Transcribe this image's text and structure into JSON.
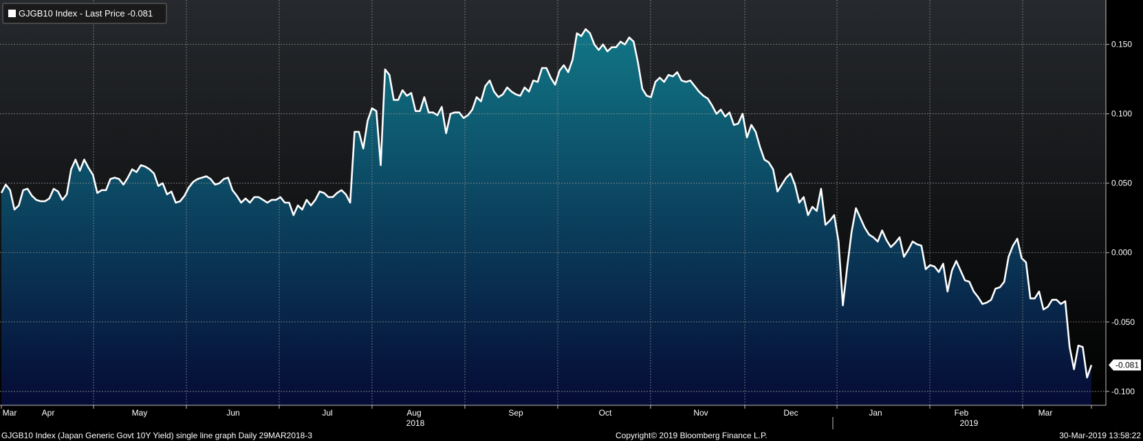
{
  "legend": {
    "text": "GJGB10 Index - Last Price -0.081"
  },
  "last_value_label": "-0.081",
  "footer": {
    "left": "GJGB10 Index (Japan Generic Govt 10Y Yield) single line graph  Daily 29MAR2018-3",
    "center": "Copyright© 2019 Bloomberg Finance L.P.",
    "right": "30-Mar-2019 13:58:22"
  },
  "colors": {
    "background": "#000000",
    "line": "#ffffff",
    "area_top": "#127f8c",
    "area_bottom": "#050b35",
    "plot_bg_top": "#26292d",
    "plot_bg_bottom": "#000000",
    "grid": "#8a8a8a"
  },
  "chart_data": {
    "type": "area",
    "title": "",
    "xlabel": "",
    "ylabel": "",
    "ylim": [
      -0.11,
      0.182
    ],
    "y_ticks": [
      0.15,
      0.1,
      0.05,
      0.0,
      -0.05,
      -0.1
    ],
    "y_tick_labels": [
      "0.150",
      "0.100",
      "0.050",
      "0.000",
      "-0.050",
      "-0.100"
    ],
    "x_ticks": [
      "Mar",
      "Apr",
      "May",
      "Jun",
      "Jul",
      "Aug",
      "Sep",
      "Oct",
      "Nov",
      "Dec",
      "Jan",
      "Feb",
      "Mar"
    ],
    "year_labels": [
      "2018",
      "2019"
    ],
    "grid": true,
    "legend_position": "top-left",
    "series": [
      {
        "name": "GJGB10 Index - Last Price",
        "values": [
          0.043,
          0.049,
          0.045,
          0.031,
          0.034,
          0.045,
          0.046,
          0.041,
          0.038,
          0.037,
          0.037,
          0.039,
          0.046,
          0.044,
          0.038,
          0.042,
          0.06,
          0.067,
          0.059,
          0.067,
          0.061,
          0.056,
          0.043,
          0.045,
          0.045,
          0.053,
          0.054,
          0.053,
          0.049,
          0.054,
          0.06,
          0.058,
          0.063,
          0.062,
          0.06,
          0.057,
          0.048,
          0.05,
          0.042,
          0.044,
          0.036,
          0.037,
          0.041,
          0.047,
          0.051,
          0.053,
          0.054,
          0.055,
          0.053,
          0.049,
          0.05,
          0.053,
          0.054,
          0.045,
          0.041,
          0.036,
          0.039,
          0.036,
          0.04,
          0.04,
          0.038,
          0.036,
          0.038,
          0.038,
          0.04,
          0.036,
          0.036,
          0.027,
          0.034,
          0.031,
          0.038,
          0.034,
          0.038,
          0.044,
          0.043,
          0.04,
          0.04,
          0.043,
          0.045,
          0.042,
          0.036,
          0.087,
          0.087,
          0.075,
          0.095,
          0.104,
          0.102,
          0.063,
          0.132,
          0.128,
          0.11,
          0.11,
          0.117,
          0.113,
          0.115,
          0.102,
          0.102,
          0.112,
          0.101,
          0.101,
          0.099,
          0.105,
          0.086,
          0.1,
          0.101,
          0.101,
          0.097,
          0.099,
          0.103,
          0.112,
          0.109,
          0.12,
          0.124,
          0.116,
          0.112,
          0.114,
          0.119,
          0.116,
          0.114,
          0.113,
          0.119,
          0.116,
          0.124,
          0.123,
          0.133,
          0.133,
          0.126,
          0.121,
          0.131,
          0.135,
          0.13,
          0.139,
          0.158,
          0.156,
          0.161,
          0.158,
          0.15,
          0.146,
          0.15,
          0.145,
          0.148,
          0.148,
          0.152,
          0.15,
          0.155,
          0.152,
          0.137,
          0.118,
          0.113,
          0.112,
          0.123,
          0.126,
          0.123,
          0.128,
          0.127,
          0.13,
          0.124,
          0.123,
          0.124,
          0.12,
          0.116,
          0.113,
          0.111,
          0.106,
          0.1,
          0.103,
          0.098,
          0.101,
          0.092,
          0.093,
          0.1,
          0.083,
          0.092,
          0.087,
          0.076,
          0.067,
          0.065,
          0.06,
          0.044,
          0.049,
          0.054,
          0.057,
          0.049,
          0.036,
          0.04,
          0.027,
          0.033,
          0.03,
          0.046,
          0.02,
          0.023,
          0.027,
          0.008,
          -0.038,
          -0.01,
          0.015,
          0.032,
          0.025,
          0.018,
          0.013,
          0.011,
          0.008,
          0.016,
          0.009,
          0.004,
          0.007,
          0.011,
          -0.003,
          0.002,
          0.008,
          0.006,
          0.005,
          -0.012,
          -0.009,
          -0.01,
          -0.014,
          -0.008,
          -0.028,
          -0.013,
          -0.006,
          -0.013,
          -0.02,
          -0.021,
          -0.028,
          -0.032,
          -0.037,
          -0.036,
          -0.034,
          -0.026,
          -0.025,
          -0.021,
          -0.003,
          0.005,
          0.01,
          -0.004,
          -0.007,
          -0.033,
          -0.033,
          -0.028,
          -0.041,
          -0.039,
          -0.034,
          -0.034,
          -0.037,
          -0.035,
          -0.068,
          -0.084,
          -0.067,
          -0.068,
          -0.09,
          -0.081
        ]
      }
    ]
  }
}
